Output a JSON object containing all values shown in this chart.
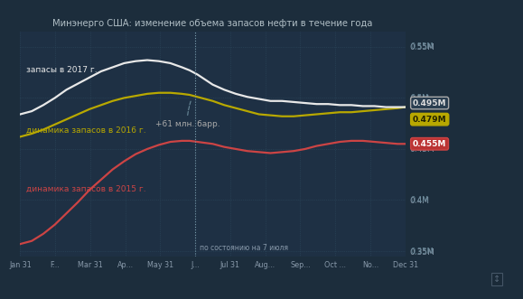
{
  "title": "Минэнерго США: изменение объема запасов нефти в течение года",
  "background_color": "#1c2d3c",
  "plot_bg_color": "#1e3044",
  "grid_color": "#2e4a5e",
  "title_color": "#b0bec5",
  "ylim": [
    0.345,
    0.565
  ],
  "yticks": [
    0.35,
    0.4,
    0.45,
    0.5,
    0.55
  ],
  "ytick_labels": [
    "0.35M",
    "0.4M",
    "0.45M",
    "0.5M",
    "0.55M"
  ],
  "xtick_labels": [
    "Jan 31",
    "F...",
    "Mar 31",
    "Ap...",
    "May 31",
    "J...",
    "Jul 31",
    "Aug...",
    "Sep...",
    "Oct ...",
    "No...",
    "Dec 31"
  ],
  "annotation_text": "+61 млн. барр.",
  "vline_label": "по состоянию на 7 июля",
  "label_2017": "запасы в 2017 г.",
  "label_2016": "динамика запасов в 2016 г.",
  "label_2015": "динамика запасов в 2015 г.",
  "color_2017": "#e8e8e8",
  "color_2016": "#b8a800",
  "color_2015": "#cc4444",
  "badge_2017_val": "0.495M",
  "badge_2016_val": "0.479M",
  "badge_2015_val": "0.455M",
  "badge_2017_fg": "#dddddd",
  "badge_2017_bg": "#2a3e50",
  "badge_2017_edge": "#aaaaaa",
  "badge_2016_fg": "#222200",
  "badge_2016_bg": "#b8a800",
  "badge_2016_edge": "#b8a800",
  "badge_2015_fg": "#ffffff",
  "badge_2015_bg": "#bb3333",
  "badge_2015_edge": "#cc4444",
  "x_2017": [
    0,
    0.03,
    0.06,
    0.09,
    0.12,
    0.15,
    0.18,
    0.21,
    0.24,
    0.27,
    0.3,
    0.33,
    0.36,
    0.39,
    0.42,
    0.44,
    0.46,
    0.48,
    0.5,
    0.53,
    0.56,
    0.59,
    0.62,
    0.65,
    0.68,
    0.71,
    0.74,
    0.77,
    0.8,
    0.83,
    0.86,
    0.89,
    0.92,
    0.95,
    0.98,
    1.0
  ],
  "y_2017": [
    0.484,
    0.487,
    0.493,
    0.5,
    0.508,
    0.514,
    0.52,
    0.526,
    0.53,
    0.534,
    0.536,
    0.537,
    0.536,
    0.534,
    0.53,
    0.527,
    0.523,
    0.518,
    0.513,
    0.508,
    0.504,
    0.501,
    0.499,
    0.497,
    0.497,
    0.496,
    0.495,
    0.494,
    0.494,
    0.493,
    0.493,
    0.492,
    0.492,
    0.491,
    0.491,
    0.491
  ],
  "x_2016": [
    0,
    0.03,
    0.06,
    0.09,
    0.12,
    0.15,
    0.18,
    0.21,
    0.24,
    0.27,
    0.3,
    0.33,
    0.36,
    0.39,
    0.42,
    0.44,
    0.46,
    0.48,
    0.5,
    0.53,
    0.56,
    0.59,
    0.62,
    0.65,
    0.68,
    0.71,
    0.74,
    0.77,
    0.8,
    0.83,
    0.86,
    0.89,
    0.92,
    0.95,
    0.98,
    1.0
  ],
  "y_2016": [
    0.462,
    0.465,
    0.469,
    0.474,
    0.479,
    0.484,
    0.489,
    0.493,
    0.497,
    0.5,
    0.502,
    0.504,
    0.505,
    0.505,
    0.504,
    0.503,
    0.501,
    0.499,
    0.497,
    0.493,
    0.49,
    0.487,
    0.484,
    0.483,
    0.482,
    0.482,
    0.483,
    0.484,
    0.485,
    0.486,
    0.486,
    0.487,
    0.488,
    0.489,
    0.49,
    0.491
  ],
  "x_2015": [
    0,
    0.03,
    0.06,
    0.09,
    0.12,
    0.15,
    0.18,
    0.21,
    0.24,
    0.27,
    0.3,
    0.33,
    0.36,
    0.39,
    0.42,
    0.44,
    0.46,
    0.48,
    0.5,
    0.53,
    0.56,
    0.59,
    0.62,
    0.65,
    0.68,
    0.71,
    0.74,
    0.77,
    0.8,
    0.83,
    0.86,
    0.89,
    0.92,
    0.95,
    0.98,
    1.0
  ],
  "y_2015": [
    0.357,
    0.36,
    0.367,
    0.376,
    0.387,
    0.398,
    0.41,
    0.42,
    0.43,
    0.438,
    0.445,
    0.45,
    0.454,
    0.457,
    0.458,
    0.458,
    0.457,
    0.456,
    0.455,
    0.452,
    0.45,
    0.448,
    0.447,
    0.446,
    0.447,
    0.448,
    0.45,
    0.453,
    0.455,
    0.457,
    0.458,
    0.458,
    0.457,
    0.456,
    0.455,
    0.455
  ],
  "vline_x": 0.455
}
